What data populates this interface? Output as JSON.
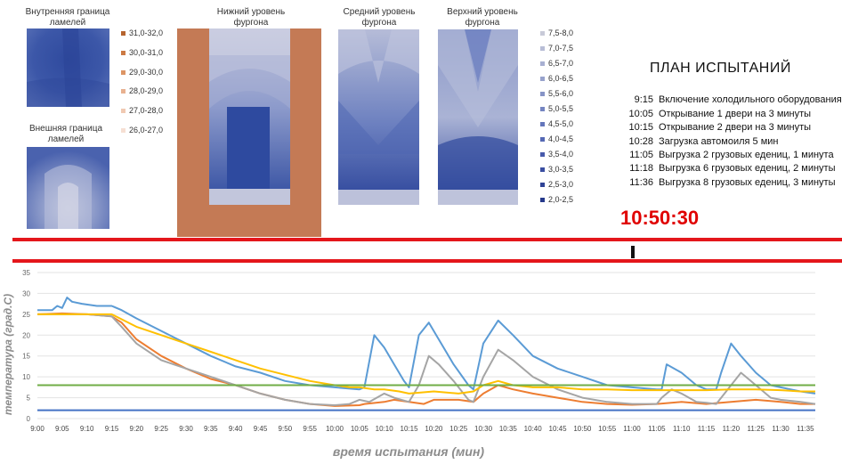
{
  "labels": {
    "inner_boundary": "Внутренняя граница ламелей",
    "outer_boundary": "Внешняя граница ламелей",
    "lower_level": "Нижний уровень фургона",
    "middle_level": "Средний уровень фургона",
    "upper_level": "Верхний уровень фургона"
  },
  "legend_warm": [
    {
      "label": "31,0-32,0",
      "color": "#b5642f"
    },
    {
      "label": "30,0-31,0",
      "color": "#cc7a44"
    },
    {
      "label": "29,0-30,0",
      "color": "#dd9565"
    },
    {
      "label": "28,0-29,0",
      "color": "#e8b190"
    },
    {
      "label": "27,0-28,0",
      "color": "#f0c9b2"
    },
    {
      "label": "26,0-27,0",
      "color": "#f6dfd3"
    }
  ],
  "legend_cool": [
    {
      "label": "7,5-8,0",
      "color": "#c8cad8"
    },
    {
      "label": "7,0-7,5",
      "color": "#b8bdd6"
    },
    {
      "label": "6,5-7,0",
      "color": "#a8b0d2"
    },
    {
      "label": "6,0-6,5",
      "color": "#97a2cc"
    },
    {
      "label": "5,5-6,0",
      "color": "#8694c6"
    },
    {
      "label": "5,0-5,5",
      "color": "#7585c1"
    },
    {
      "label": "4,5-5,0",
      "color": "#6476bb"
    },
    {
      "label": "4,0-4,5",
      "color": "#5568b4"
    },
    {
      "label": "3,5-4,0",
      "color": "#475aab"
    },
    {
      "label": "3,0-3,5",
      "color": "#3a4ea1"
    },
    {
      "label": "2,5-3,0",
      "color": "#2f4396"
    },
    {
      "label": "2,0-2,5",
      "color": "#25398b"
    }
  ],
  "plan": {
    "title": "ПЛАН ИСПЫТАНИЙ",
    "items": [
      {
        "time": "9:15",
        "text": "Включение холодильного оборудования"
      },
      {
        "time": "10:05",
        "text": "Открывание 1 двери на 3 минуты"
      },
      {
        "time": "10:15",
        "text": "Открывание 2 двери на 3 минуты"
      },
      {
        "time": "10:28",
        "text": "Загрузка автомоиля 5 мин"
      },
      {
        "time": "11:05",
        "text": "Выгрузка 2 грузовых едениц, 1 минута"
      },
      {
        "time": "11:18",
        "text": "Выгрузка 6 грузовых едениц, 2 минуты"
      },
      {
        "time": "11:36",
        "text": "Выгрузка 8 грузовых едениц, 3 минуты"
      }
    ]
  },
  "clock": "10:50:30",
  "colors": {
    "accent_red": "#e4161b",
    "heat_brown": "#c47a55"
  },
  "chart_data": {
    "type": "line",
    "xlabel": "время испытания (мин)",
    "ylabel": "температура (град.С)",
    "ylim": [
      0,
      35
    ],
    "yticks": [
      0,
      5,
      10,
      15,
      20,
      25,
      30,
      35
    ],
    "xticks": [
      "9:00",
      "9:05",
      "9:10",
      "9:15",
      "9:20",
      "9:25",
      "9:30",
      "9:35",
      "9:40",
      "9:45",
      "9:50",
      "9:55",
      "10:00",
      "10:05",
      "10:10",
      "10:15",
      "10:20",
      "10:25",
      "10:30",
      "10:35",
      "10:40",
      "10:45",
      "10:50",
      "10:55",
      "11:00",
      "11:05",
      "11:10",
      "11:15",
      "11:20",
      "11:25",
      "11:30",
      "11:35"
    ],
    "grid": true,
    "series": [
      {
        "color": "#5b9bd5",
        "points": [
          [
            0,
            26
          ],
          [
            3,
            26
          ],
          [
            4,
            27
          ],
          [
            5,
            26.5
          ],
          [
            6,
            29
          ],
          [
            7,
            28
          ],
          [
            9,
            27.5
          ],
          [
            12,
            27
          ],
          [
            15,
            27
          ],
          [
            17,
            26
          ],
          [
            20,
            24
          ],
          [
            25,
            21
          ],
          [
            30,
            18
          ],
          [
            35,
            15
          ],
          [
            40,
            12.5
          ],
          [
            45,
            11
          ],
          [
            50,
            9
          ],
          [
            55,
            8
          ],
          [
            60,
            7.5
          ],
          [
            65,
            7
          ],
          [
            66,
            7.5
          ],
          [
            68,
            20
          ],
          [
            70,
            17
          ],
          [
            72,
            13
          ],
          [
            74,
            9
          ],
          [
            75,
            7.5
          ],
          [
            77,
            20
          ],
          [
            79,
            23
          ],
          [
            81,
            19
          ],
          [
            84,
            13
          ],
          [
            87,
            8
          ],
          [
            88,
            7
          ],
          [
            90,
            18
          ],
          [
            93,
            23.5
          ],
          [
            96,
            20
          ],
          [
            100,
            15
          ],
          [
            105,
            12
          ],
          [
            110,
            10
          ],
          [
            115,
            8
          ],
          [
            120,
            7.5
          ],
          [
            125,
            7
          ],
          [
            126,
            7
          ],
          [
            127,
            13
          ],
          [
            130,
            11
          ],
          [
            133,
            8
          ],
          [
            135,
            7
          ],
          [
            136,
            7
          ],
          [
            137,
            7
          ],
          [
            138,
            11
          ],
          [
            140,
            18
          ],
          [
            142,
            15
          ],
          [
            145,
            11
          ],
          [
            148,
            8
          ],
          [
            150,
            7.5
          ],
          [
            152,
            7
          ],
          [
            154,
            6.5
          ],
          [
            157,
            6
          ]
        ]
      },
      {
        "color": "#ed7d31",
        "points": [
          [
            0,
            25
          ],
          [
            5,
            25.2
          ],
          [
            10,
            25
          ],
          [
            15,
            24.5
          ],
          [
            17,
            23
          ],
          [
            20,
            19
          ],
          [
            25,
            15
          ],
          [
            30,
            12
          ],
          [
            35,
            9.5
          ],
          [
            40,
            8
          ],
          [
            45,
            6
          ],
          [
            50,
            4.5
          ],
          [
            55,
            3.5
          ],
          [
            60,
            3
          ],
          [
            65,
            3.2
          ],
          [
            66,
            3.5
          ],
          [
            70,
            4
          ],
          [
            72,
            4.5
          ],
          [
            75,
            4
          ],
          [
            78,
            3.5
          ],
          [
            80,
            4.5
          ],
          [
            85,
            4.5
          ],
          [
            88,
            4
          ],
          [
            90,
            6
          ],
          [
            93,
            8
          ],
          [
            96,
            7
          ],
          [
            100,
            6
          ],
          [
            105,
            5
          ],
          [
            110,
            4
          ],
          [
            115,
            3.5
          ],
          [
            120,
            3.3
          ],
          [
            125,
            3.5
          ],
          [
            130,
            4
          ],
          [
            135,
            3.5
          ],
          [
            140,
            4
          ],
          [
            145,
            4.5
          ],
          [
            150,
            4
          ],
          [
            154,
            3.5
          ],
          [
            157,
            3.5
          ]
        ]
      },
      {
        "color": "#a5a5a5",
        "points": [
          [
            0,
            25
          ],
          [
            5,
            25
          ],
          [
            10,
            25
          ],
          [
            15,
            24.5
          ],
          [
            17,
            22
          ],
          [
            20,
            18
          ],
          [
            25,
            14
          ],
          [
            30,
            12
          ],
          [
            35,
            10
          ],
          [
            40,
            8
          ],
          [
            45,
            6
          ],
          [
            50,
            4.5
          ],
          [
            55,
            3.5
          ],
          [
            60,
            3.2
          ],
          [
            63,
            3.5
          ],
          [
            65,
            4.5
          ],
          [
            67,
            4
          ],
          [
            70,
            6
          ],
          [
            72,
            5
          ],
          [
            75,
            4
          ],
          [
            77,
            8
          ],
          [
            79,
            15
          ],
          [
            81,
            13
          ],
          [
            84,
            9
          ],
          [
            87,
            4.5
          ],
          [
            88,
            4
          ],
          [
            90,
            10
          ],
          [
            93,
            16.5
          ],
          [
            96,
            14
          ],
          [
            100,
            10
          ],
          [
            105,
            7
          ],
          [
            110,
            5
          ],
          [
            115,
            4
          ],
          [
            120,
            3.5
          ],
          [
            125,
            3.5
          ],
          [
            126,
            5
          ],
          [
            128,
            7
          ],
          [
            130,
            6
          ],
          [
            133,
            4
          ],
          [
            135,
            3.8
          ],
          [
            137,
            3.5
          ],
          [
            140,
            8
          ],
          [
            142,
            11
          ],
          [
            145,
            8
          ],
          [
            148,
            5
          ],
          [
            150,
            4.5
          ],
          [
            154,
            4
          ],
          [
            157,
            3.5
          ]
        ]
      },
      {
        "color": "#ffc000",
        "points": [
          [
            0,
            25
          ],
          [
            5,
            25
          ],
          [
            10,
            25
          ],
          [
            15,
            25
          ],
          [
            20,
            22
          ],
          [
            25,
            20
          ],
          [
            30,
            18
          ],
          [
            35,
            16
          ],
          [
            40,
            14
          ],
          [
            45,
            12
          ],
          [
            50,
            10.5
          ],
          [
            55,
            9
          ],
          [
            60,
            8
          ],
          [
            63,
            7.5
          ],
          [
            65,
            7.5
          ],
          [
            68,
            7
          ],
          [
            70,
            7
          ],
          [
            73,
            6.5
          ],
          [
            75,
            6
          ],
          [
            80,
            6.5
          ],
          [
            85,
            6
          ],
          [
            88,
            6.5
          ],
          [
            90,
            8
          ],
          [
            93,
            9
          ],
          [
            96,
            8
          ],
          [
            100,
            7.5
          ],
          [
            105,
            7.5
          ],
          [
            110,
            7
          ],
          [
            115,
            7
          ],
          [
            120,
            6.8
          ],
          [
            125,
            6.8
          ],
          [
            130,
            6.8
          ],
          [
            135,
            6.8
          ],
          [
            140,
            7
          ],
          [
            145,
            7
          ],
          [
            150,
            6.8
          ],
          [
            154,
            6.5
          ],
          [
            157,
            6.5
          ]
        ]
      },
      {
        "color": "#70ad47",
        "points": [
          [
            0,
            8
          ],
          [
            157,
            8
          ]
        ]
      },
      {
        "color": "#4472c4",
        "points": [
          [
            0,
            2
          ],
          [
            157,
            2
          ]
        ]
      }
    ]
  }
}
